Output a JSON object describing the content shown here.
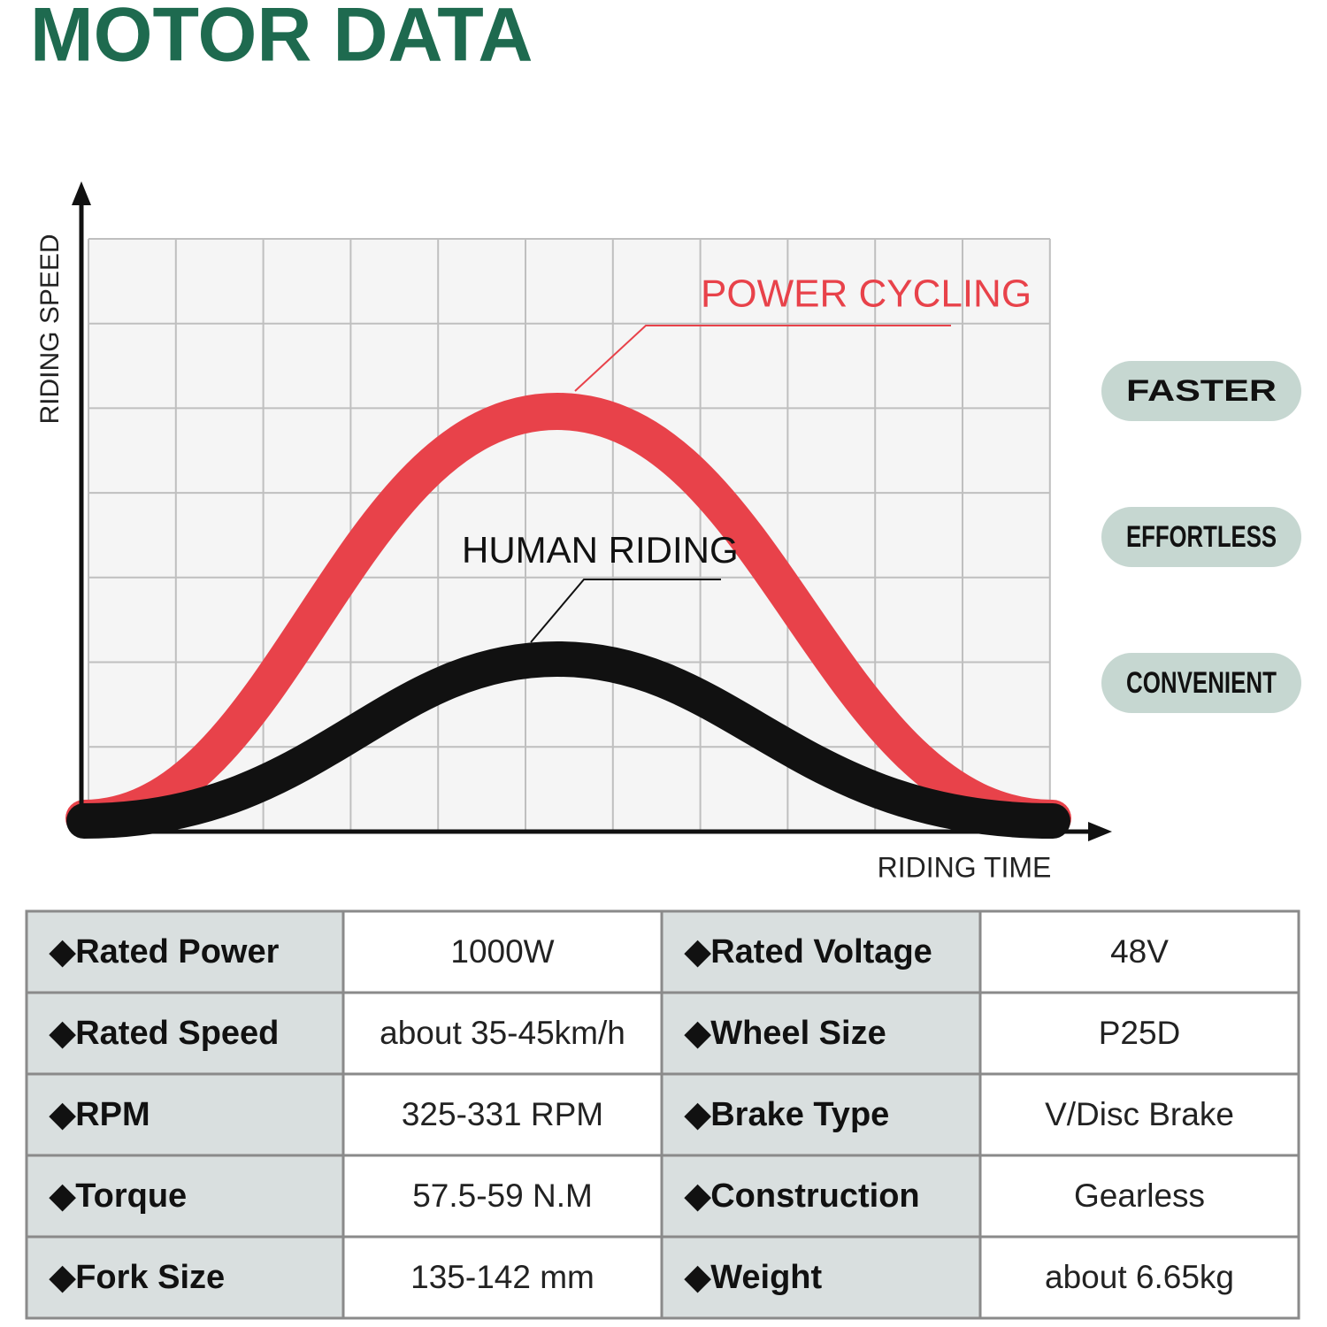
{
  "title": "MOTOR DATA",
  "diagram": {
    "y_axis_label": "RIDING SPEED",
    "x_axis_label": "RIDING TIME",
    "curves": [
      {
        "label": "POWER CYCLING"
      },
      {
        "label": "HUMAN RIDING"
      }
    ]
  },
  "badges": [
    "FASTER",
    "EFFORTLESS",
    "CONVENIENT"
  ],
  "table": {
    "rows": [
      [
        "◆Rated Power",
        "1000W",
        "◆Rated Voltage",
        "48V"
      ],
      [
        "◆Rated Speed",
        "about 35-45km/h",
        "◆Wheel Size",
        "P25D"
      ],
      [
        "◆RPM",
        "325-331 RPM",
        "◆Brake Type",
        "V/Disc Brake"
      ],
      [
        "◆Torque",
        "57.5-59 N.M",
        "◆Construction",
        "Gearless"
      ],
      [
        "◆Fork Size",
        "135-142 mm",
        "◆Weight",
        "about 6.65kg"
      ]
    ]
  }
}
